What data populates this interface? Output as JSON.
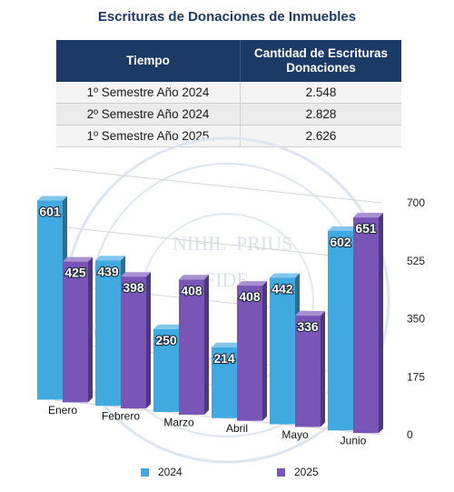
{
  "title": "Escrituras de Donaciones de Inmuebles",
  "table": {
    "headers": [
      "Tiempo",
      "Cantidad de Escrituras Donaciones"
    ],
    "rows": [
      [
        "1º Semestre Año 2024",
        "2.548"
      ],
      [
        "2º Semestre Año 2024",
        "2.828"
      ],
      [
        "1º Semestre Año 2025",
        "2.626"
      ]
    ]
  },
  "watermark": {
    "line1": "NIHIL",
    "line2": "PRIUS",
    "line3": "FIDE"
  },
  "chart_data": {
    "type": "bar",
    "categories": [
      "Enero",
      "Febrero",
      "Marzo",
      "Abril",
      "Mayo",
      "Junio"
    ],
    "series": [
      {
        "name": "2024",
        "values": [
          601,
          439,
          250,
          214,
          442,
          602
        ],
        "color": "#3fa9e0"
      },
      {
        "name": "2025",
        "values": [
          425,
          398,
          408,
          408,
          336,
          651
        ],
        "color": "#7a55b8"
      }
    ],
    "y_ticks": [
      "0",
      "175",
      "350",
      "525",
      "700"
    ],
    "ylim": [
      0,
      700
    ],
    "grid": true,
    "legend_position": "bottom",
    "perspective": "3d"
  }
}
